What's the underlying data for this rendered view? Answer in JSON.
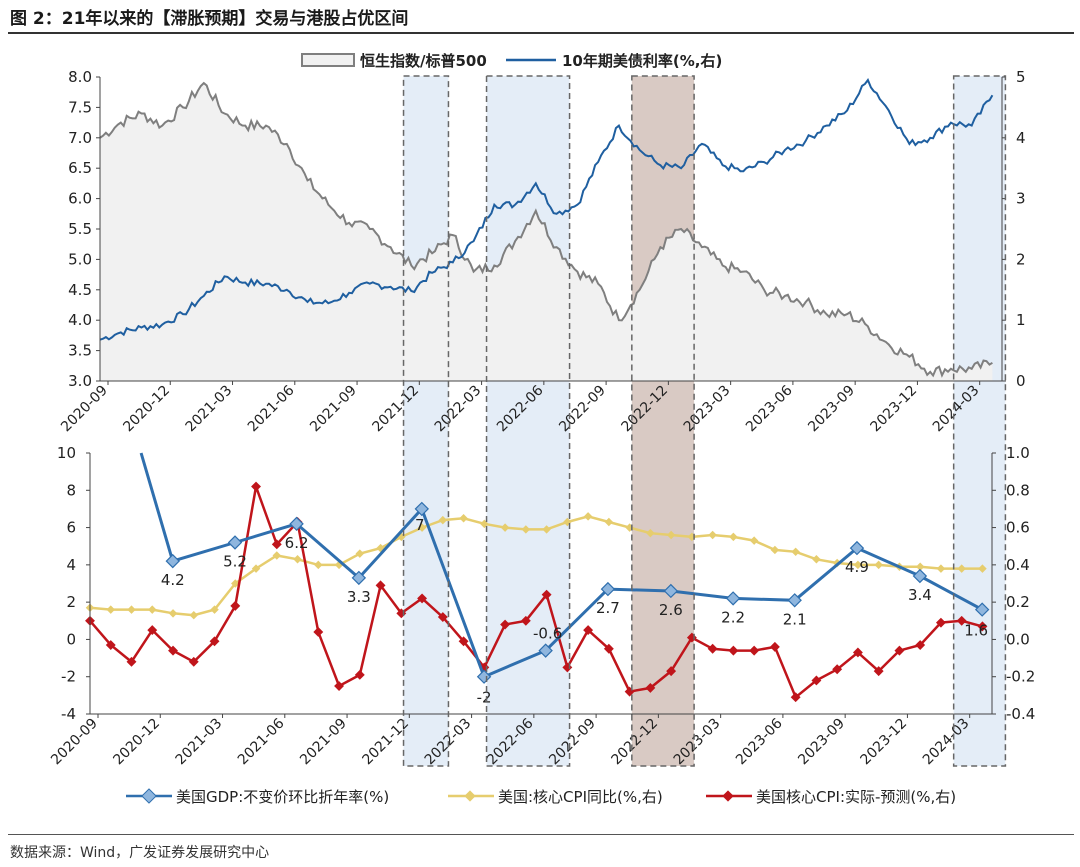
{
  "title": "图 2：21年以来的【滞胀预期】交易与港股占优区间",
  "source": "数据来源：Wind，广发证券发展研究中心",
  "colors": {
    "hsi_line": "#7f7f7f",
    "hsi_fill": "#f1f1f1",
    "ust": "#1f5fa0",
    "gdp": "#2f6fae",
    "gdp_marker": "#8fb6de",
    "core_cpi": "#e6cd6e",
    "cpi_surprise": "#c0151b",
    "highlight_blue": "#dde9f5",
    "highlight_brown": "#ccb8b0",
    "box_border": "#666666"
  },
  "x_ticks": [
    "2020-09",
    "2020-12",
    "2021-03",
    "2021-06",
    "2021-09",
    "2021-12",
    "2022-03",
    "2022-06",
    "2022-09",
    "2022-12",
    "2023-03",
    "2023-06",
    "2023-09",
    "2023-12",
    "2024-03"
  ],
  "highlight_periods": [
    {
      "start": "2021-11-20",
      "end": "2022-01-25",
      "color": "blue"
    },
    {
      "start": "2022-03-20",
      "end": "2022-07-20",
      "color": "blue"
    },
    {
      "start": "2022-10-20",
      "end": "2023-01-20",
      "color": "brown"
    },
    {
      "start": "2024-02-05",
      "end": "2024-04-20",
      "color": "blue"
    }
  ],
  "chart_data": [
    {
      "type": "area",
      "legend": [
        "恒生指数/标普500",
        "10年期美债利率(%,右)"
      ],
      "legend_placement": "top",
      "ylim_left": [
        3.0,
        8.0
      ],
      "yticks_left": [
        "3.0",
        "3.5",
        "4.0",
        "4.5",
        "5.0",
        "5.5",
        "6.0",
        "6.5",
        "7.0",
        "7.5",
        "8.0"
      ],
      "ylim_right": [
        0,
        5
      ],
      "yticks_right": [
        "0",
        "1",
        "2",
        "3",
        "4",
        "5"
      ],
      "series": [
        {
          "name": "恒生指数/标普500",
          "axis": "left",
          "style": "area",
          "points": [
            [
              "2020-09-01",
              7.0
            ],
            [
              "2020-10-01",
              7.25
            ],
            [
              "2020-11-01",
              7.4
            ],
            [
              "2020-12-01",
              7.2
            ],
            [
              "2021-01-01",
              7.5
            ],
            [
              "2021-02-01",
              7.9
            ],
            [
              "2021-03-01",
              7.4
            ],
            [
              "2021-04-01",
              7.2
            ],
            [
              "2021-05-01",
              7.2
            ],
            [
              "2021-06-01",
              6.9
            ],
            [
              "2021-07-01",
              6.3
            ],
            [
              "2021-08-01",
              5.9
            ],
            [
              "2021-09-01",
              5.6
            ],
            [
              "2021-10-01",
              5.5
            ],
            [
              "2021-11-01",
              5.2
            ],
            [
              "2021-12-01",
              4.9
            ],
            [
              "2022-01-01",
              5.1
            ],
            [
              "2022-02-01",
              5.4
            ],
            [
              "2022-03-01",
              4.8
            ],
            [
              "2022-04-01",
              4.9
            ],
            [
              "2022-05-01",
              5.3
            ],
            [
              "2022-06-01",
              5.8
            ],
            [
              "2022-07-01",
              5.2
            ],
            [
              "2022-08-01",
              4.8
            ],
            [
              "2022-09-01",
              4.6
            ],
            [
              "2022-10-01",
              4.0
            ],
            [
              "2022-11-01",
              4.5
            ],
            [
              "2022-12-01",
              5.2
            ],
            [
              "2023-01-01",
              5.5
            ],
            [
              "2023-02-01",
              5.2
            ],
            [
              "2023-03-01",
              4.9
            ],
            [
              "2023-04-01",
              4.8
            ],
            [
              "2023-05-01",
              4.5
            ],
            [
              "2023-06-01",
              4.4
            ],
            [
              "2023-07-01",
              4.3
            ],
            [
              "2023-08-01",
              4.1
            ],
            [
              "2023-09-01",
              4.1
            ],
            [
              "2023-10-01",
              3.9
            ],
            [
              "2023-11-01",
              3.6
            ],
            [
              "2023-12-01",
              3.4
            ],
            [
              "2024-01-01",
              3.15
            ],
            [
              "2024-02-01",
              3.2
            ],
            [
              "2024-03-01",
              3.2
            ],
            [
              "2024-04-01",
              3.3
            ]
          ]
        },
        {
          "name": "10年期美债利率(%,右)",
          "axis": "right",
          "style": "line",
          "points": [
            [
              "2020-09-01",
              0.68
            ],
            [
              "2020-10-01",
              0.8
            ],
            [
              "2020-11-01",
              0.88
            ],
            [
              "2020-12-01",
              0.93
            ],
            [
              "2021-01-01",
              1.1
            ],
            [
              "2021-02-01",
              1.4
            ],
            [
              "2021-03-01",
              1.72
            ],
            [
              "2021-04-01",
              1.62
            ],
            [
              "2021-05-01",
              1.6
            ],
            [
              "2021-06-01",
              1.5
            ],
            [
              "2021-07-01",
              1.3
            ],
            [
              "2021-08-01",
              1.28
            ],
            [
              "2021-09-01",
              1.45
            ],
            [
              "2021-10-01",
              1.6
            ],
            [
              "2021-11-01",
              1.55
            ],
            [
              "2021-12-01",
              1.48
            ],
            [
              "2022-01-01",
              1.78
            ],
            [
              "2022-02-01",
              1.95
            ],
            [
              "2022-03-01",
              2.3
            ],
            [
              "2022-04-01",
              2.9
            ],
            [
              "2022-05-01",
              2.9
            ],
            [
              "2022-06-01",
              3.25
            ],
            [
              "2022-07-01",
              2.75
            ],
            [
              "2022-08-01",
              2.9
            ],
            [
              "2022-09-01",
              3.6
            ],
            [
              "2022-10-01",
              4.2
            ],
            [
              "2022-11-01",
              3.8
            ],
            [
              "2022-12-01",
              3.55
            ],
            [
              "2023-01-01",
              3.5
            ],
            [
              "2023-02-01",
              3.9
            ],
            [
              "2023-03-01",
              3.55
            ],
            [
              "2023-04-01",
              3.45
            ],
            [
              "2023-05-01",
              3.6
            ],
            [
              "2023-06-01",
              3.8
            ],
            [
              "2023-07-01",
              3.95
            ],
            [
              "2023-08-01",
              4.2
            ],
            [
              "2023-09-01",
              4.45
            ],
            [
              "2023-10-01",
              4.95
            ],
            [
              "2023-11-01",
              4.45
            ],
            [
              "2023-12-01",
              3.9
            ],
            [
              "2024-01-01",
              4.0
            ],
            [
              "2024-02-01",
              4.25
            ],
            [
              "2024-03-01",
              4.2
            ],
            [
              "2024-04-01",
              4.7
            ]
          ]
        }
      ]
    },
    {
      "type": "line",
      "legend": [
        "美国GDP:不变价环比折年率(%)",
        "美国:核心CPI同比(%,右)",
        "美国核心CPI:实际-预测(%,右)"
      ],
      "legend_placement": "bottom",
      "ylim_left": [
        -4,
        10
      ],
      "yticks_left": [
        "-4",
        "-2",
        "0",
        "2",
        "4",
        "6",
        "8",
        "10"
      ],
      "ylim_right": [
        -0.4,
        1.0
      ],
      "yticks_right": [
        "-0.4",
        "-0.2",
        "0.0",
        "0.2",
        "0.4",
        "0.6",
        "0.8",
        "1.0"
      ],
      "series": [
        {
          "name": "美国GDP:不变价环比折年率(%)",
          "axis": "left",
          "lead_in": [
            "2020-11-15",
            10.8
          ],
          "points": [
            [
              "2020-12-31",
              4.2
            ],
            [
              "2021-03-31",
              5.2
            ],
            [
              "2021-06-30",
              6.2
            ],
            [
              "2021-09-30",
              3.3
            ],
            [
              "2021-12-31",
              7.0
            ],
            [
              "2022-03-31",
              -2.0
            ],
            [
              "2022-06-30",
              -0.6
            ],
            [
              "2022-09-30",
              2.7
            ],
            [
              "2022-12-31",
              2.6
            ],
            [
              "2023-03-31",
              2.2
            ],
            [
              "2023-06-30",
              2.1
            ],
            [
              "2023-09-30",
              4.9
            ],
            [
              "2023-12-31",
              3.4
            ],
            [
              "2024-03-31",
              1.6
            ]
          ],
          "labels": [
            "4.2",
            "5.2",
            "6.2",
            "3.3",
            "7",
            "-2",
            "-0.6",
            "2.7",
            "2.6",
            "2.2",
            "2.1",
            "4.9",
            "3.4",
            "1.6"
          ]
        },
        {
          "name": "美国:核心CPI同比(%,右)",
          "axis": "right",
          "points": [
            [
              "2020-09-01",
              0.17
            ],
            [
              "2020-10-01",
              0.16
            ],
            [
              "2020-11-01",
              0.16
            ],
            [
              "2020-12-01",
              0.16
            ],
            [
              "2021-01-01",
              0.14
            ],
            [
              "2021-02-01",
              0.13
            ],
            [
              "2021-03-01",
              0.16
            ],
            [
              "2021-04-01",
              0.3
            ],
            [
              "2021-05-01",
              0.38
            ],
            [
              "2021-06-01",
              0.45
            ],
            [
              "2021-07-01",
              0.43
            ],
            [
              "2021-08-01",
              0.4
            ],
            [
              "2021-09-01",
              0.4
            ],
            [
              "2021-10-01",
              0.46
            ],
            [
              "2021-11-01",
              0.49
            ],
            [
              "2021-12-01",
              0.55
            ],
            [
              "2022-01-01",
              0.6
            ],
            [
              "2022-02-01",
              0.64
            ],
            [
              "2022-03-01",
              0.65
            ],
            [
              "2022-04-01",
              0.62
            ],
            [
              "2022-05-01",
              0.6
            ],
            [
              "2022-06-01",
              0.59
            ],
            [
              "2022-07-01",
              0.59
            ],
            [
              "2022-08-01",
              0.63
            ],
            [
              "2022-09-01",
              0.66
            ],
            [
              "2022-10-01",
              0.63
            ],
            [
              "2022-11-01",
              0.6
            ],
            [
              "2022-12-01",
              0.57
            ],
            [
              "2023-01-01",
              0.56
            ],
            [
              "2023-02-01",
              0.55
            ],
            [
              "2023-03-01",
              0.56
            ],
            [
              "2023-04-01",
              0.55
            ],
            [
              "2023-05-01",
              0.53
            ],
            [
              "2023-06-01",
              0.48
            ],
            [
              "2023-07-01",
              0.47
            ],
            [
              "2023-08-01",
              0.43
            ],
            [
              "2023-09-01",
              0.41
            ],
            [
              "2023-10-01",
              0.4
            ],
            [
              "2023-11-01",
              0.4
            ],
            [
              "2023-12-01",
              0.39
            ],
            [
              "2024-01-01",
              0.39
            ],
            [
              "2024-02-01",
              0.38
            ],
            [
              "2024-03-01",
              0.38
            ],
            [
              "2024-04-01",
              0.38
            ]
          ]
        },
        {
          "name": "美国核心CPI:实际-预测(%,右)",
          "axis": "right",
          "points": [
            [
              "2020-09-01",
              0.1
            ],
            [
              "2020-10-01",
              -0.03
            ],
            [
              "2020-11-01",
              -0.12
            ],
            [
              "2020-12-01",
              0.05
            ],
            [
              "2021-01-01",
              -0.06
            ],
            [
              "2021-02-01",
              -0.12
            ],
            [
              "2021-03-01",
              -0.01
            ],
            [
              "2021-04-01",
              0.18
            ],
            [
              "2021-05-01",
              0.82
            ],
            [
              "2021-06-01",
              0.51
            ],
            [
              "2021-07-01",
              0.63
            ],
            [
              "2021-08-01",
              0.04
            ],
            [
              "2021-09-01",
              -0.25
            ],
            [
              "2021-10-01",
              -0.19
            ],
            [
              "2021-11-01",
              0.29
            ],
            [
              "2021-12-01",
              0.14
            ],
            [
              "2022-01-01",
              0.22
            ],
            [
              "2022-02-01",
              0.12
            ],
            [
              "2022-03-01",
              -0.01
            ],
            [
              "2022-04-01",
              -0.15
            ],
            [
              "2022-05-01",
              0.08
            ],
            [
              "2022-06-01",
              0.1
            ],
            [
              "2022-07-01",
              0.24
            ],
            [
              "2022-08-01",
              -0.15
            ],
            [
              "2022-09-01",
              0.05
            ],
            [
              "2022-10-01",
              -0.05
            ],
            [
              "2022-11-01",
              -0.28
            ],
            [
              "2022-12-01",
              -0.26
            ],
            [
              "2023-01-01",
              -0.17
            ],
            [
              "2023-02-01",
              0.01
            ],
            [
              "2023-03-01",
              -0.05
            ],
            [
              "2023-04-01",
              -0.06
            ],
            [
              "2023-05-01",
              -0.06
            ],
            [
              "2023-06-01",
              -0.04
            ],
            [
              "2023-07-01",
              -0.31
            ],
            [
              "2023-08-01",
              -0.22
            ],
            [
              "2023-09-01",
              -0.16
            ],
            [
              "2023-10-01",
              -0.07
            ],
            [
              "2023-11-01",
              -0.17
            ],
            [
              "2023-12-01",
              -0.06
            ],
            [
              "2024-01-01",
              -0.03
            ],
            [
              "2024-02-01",
              0.09
            ],
            [
              "2024-03-01",
              0.1
            ],
            [
              "2024-04-01",
              0.07
            ]
          ]
        }
      ]
    }
  ]
}
